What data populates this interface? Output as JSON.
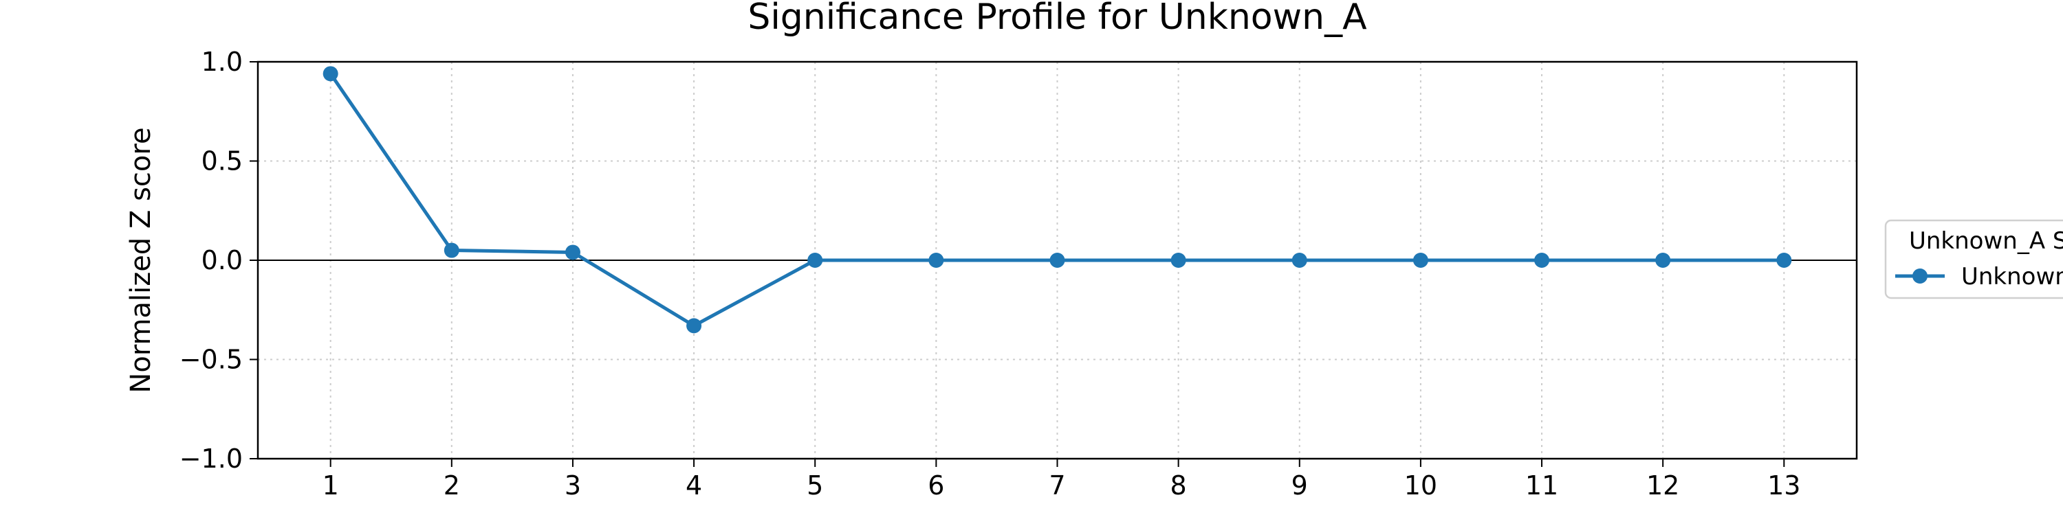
{
  "chart_data": {
    "type": "line",
    "title": "Significance Profile for Unknown_A",
    "xlabel": "",
    "ylabel": "Normalized Z score",
    "x": [
      1,
      2,
      3,
      4,
      5,
      6,
      7,
      8,
      9,
      10,
      11,
      12,
      13
    ],
    "xlim": [
      0.4,
      13.6
    ],
    "ylim": [
      -1.0,
      1.0
    ],
    "x_ticks": [
      "1",
      "2",
      "3",
      "4",
      "5",
      "6",
      "7",
      "8",
      "9",
      "10",
      "11",
      "12",
      "13"
    ],
    "y_ticks": [
      {
        "value": 1.0,
        "label": "1.0"
      },
      {
        "value": 0.5,
        "label": "0.5"
      },
      {
        "value": 0.0,
        "label": "0.0"
      },
      {
        "value": -0.5,
        "label": "−0.5"
      },
      {
        "value": -1.0,
        "label": "−1.0"
      }
    ],
    "grid": true,
    "zero_line": true,
    "series": [
      {
        "name": "Unknown",
        "color": "#1f77b4",
        "marker": "circle",
        "values": [
          0.94,
          0.05,
          0.04,
          -0.33,
          0.0,
          0.0,
          0.0,
          0.0,
          0.0,
          0.0,
          0.0,
          0.0,
          0.0
        ]
      }
    ],
    "legend": {
      "title": "Unknown_A S",
      "placement": "right-outside"
    }
  }
}
